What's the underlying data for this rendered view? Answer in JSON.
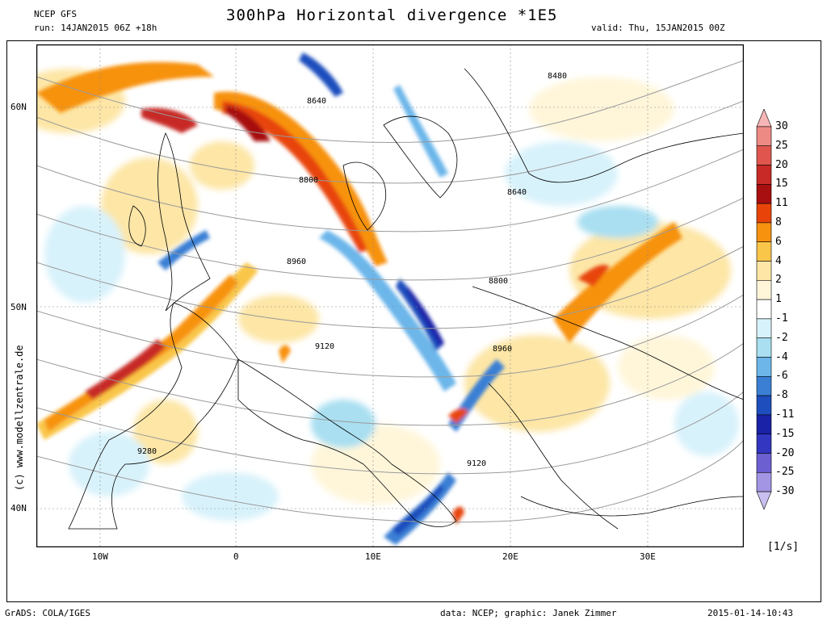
{
  "header": {
    "model": "NCEP GFS",
    "run": "run: 14JAN2015 06Z +18h",
    "title": "300hPa Horizontal divergence *1E5",
    "valid": "valid: Thu, 15JAN2015 00Z"
  },
  "axes": {
    "lat_labels": [
      "60N",
      "50N",
      "40N"
    ],
    "lon_labels": [
      "10W",
      "0",
      "10E",
      "20E",
      "30E"
    ]
  },
  "contours": {
    "labels": [
      "8480",
      "8640",
      "8640",
      "8800",
      "8800",
      "8960",
      "8960",
      "9120",
      "9120",
      "9280"
    ]
  },
  "colorbar": {
    "unit": "[1/s]",
    "levels": [
      "30",
      "25",
      "20",
      "15",
      "11",
      "8",
      "6",
      "4",
      "2",
      "1",
      "-1",
      "-2",
      "-4",
      "-6",
      "-8",
      "-11",
      "-15",
      "-20",
      "-25",
      "-30"
    ],
    "colors": [
      "#f5b5b5",
      "#ee8a84",
      "#e0564e",
      "#c72a27",
      "#a80f10",
      "#e8440a",
      "#f7920f",
      "#f9c64a",
      "#fde6a6",
      "#fff6da",
      "#ffffff",
      "#d8f2fb",
      "#a9dff1",
      "#6cb6ea",
      "#3a7fd4",
      "#1e4dbd",
      "#1a22a8",
      "#3236c0",
      "#6b5fd2",
      "#a394e4",
      "#c9bff0"
    ]
  },
  "side_credit": "(c) www.modellzentrale.de",
  "footer": {
    "left": "GrADS: COLA/IGES",
    "center": "data: NCEP; graphic: Janek Zimmer",
    "right": "2015-01-14-10:43"
  }
}
